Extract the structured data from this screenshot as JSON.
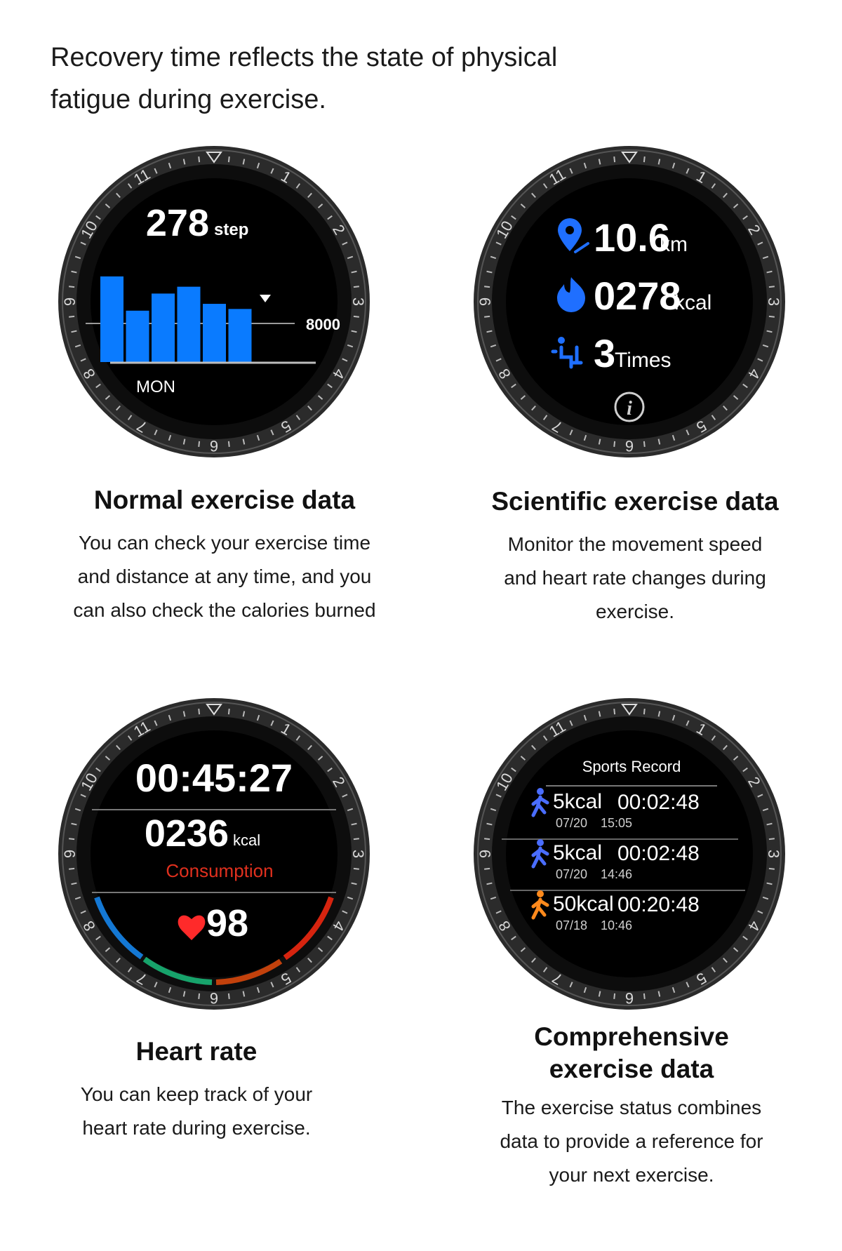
{
  "intro": {
    "line1": "Recovery time reflects the state of physical",
    "line2": "fatigue during exercise."
  },
  "bezel": [
    "11",
    "1",
    "2",
    "3",
    "4",
    "5",
    "6",
    "7",
    "8",
    "9",
    "10"
  ],
  "watch1": {
    "steps": "278",
    "steps_unit": "step",
    "goal_label": "8000",
    "day_label": "MON",
    "bar_values": [
      100,
      60,
      80,
      88,
      68,
      62
    ],
    "bar_color": "#0a7bff"
  },
  "watch2": {
    "distance": "10.6",
    "distance_unit": "km",
    "calories": "0278",
    "calories_unit": "kcal",
    "times": "3",
    "times_unit": "Times",
    "icons": [
      "location-icon",
      "flame-icon",
      "sit-up-icon",
      "info-icon"
    ],
    "accent": "#1f6fff"
  },
  "watch3": {
    "duration": "00:45:27",
    "calories": "0236",
    "calories_unit": "kcal",
    "consumption_label": "Consumption",
    "heart_rate": "98",
    "consumption_color": "#e0301e",
    "heart_color": "#ff2a2a"
  },
  "watch4": {
    "title": "Sports Record",
    "records": [
      {
        "kcal": "5kcal",
        "time": "00:02:48",
        "date": "07/20",
        "clock": "15:05",
        "icon": "walking-icon",
        "color": "#4a6dff"
      },
      {
        "kcal": "5kcal",
        "time": "00:02:48",
        "date": "07/20",
        "clock": "14:46",
        "icon": "walking-icon",
        "color": "#4a6dff"
      },
      {
        "kcal": "50kcal",
        "time": "00:20:48",
        "date": "07/18",
        "clock": "10:46",
        "icon": "running-icon",
        "color": "#ff8a1c"
      }
    ]
  },
  "captions": {
    "c1": {
      "title": "Normal exercise data",
      "lines": [
        "You can check your exercise time",
        "and distance at any time, and you",
        "can also check the calories burned"
      ]
    },
    "c2": {
      "title": "Scientific exercise data",
      "lines": [
        "Monitor the movement speed",
        "and heart rate changes during",
        "exercise."
      ]
    },
    "c3": {
      "title": "Heart rate",
      "lines": [
        "You can keep track of your",
        "heart rate during exercise."
      ]
    },
    "c4": {
      "title_lines": [
        "Comprehensive",
        "exercise data"
      ],
      "lines": [
        "The exercise status combines",
        "data to provide a reference for",
        "your next exercise."
      ]
    }
  }
}
